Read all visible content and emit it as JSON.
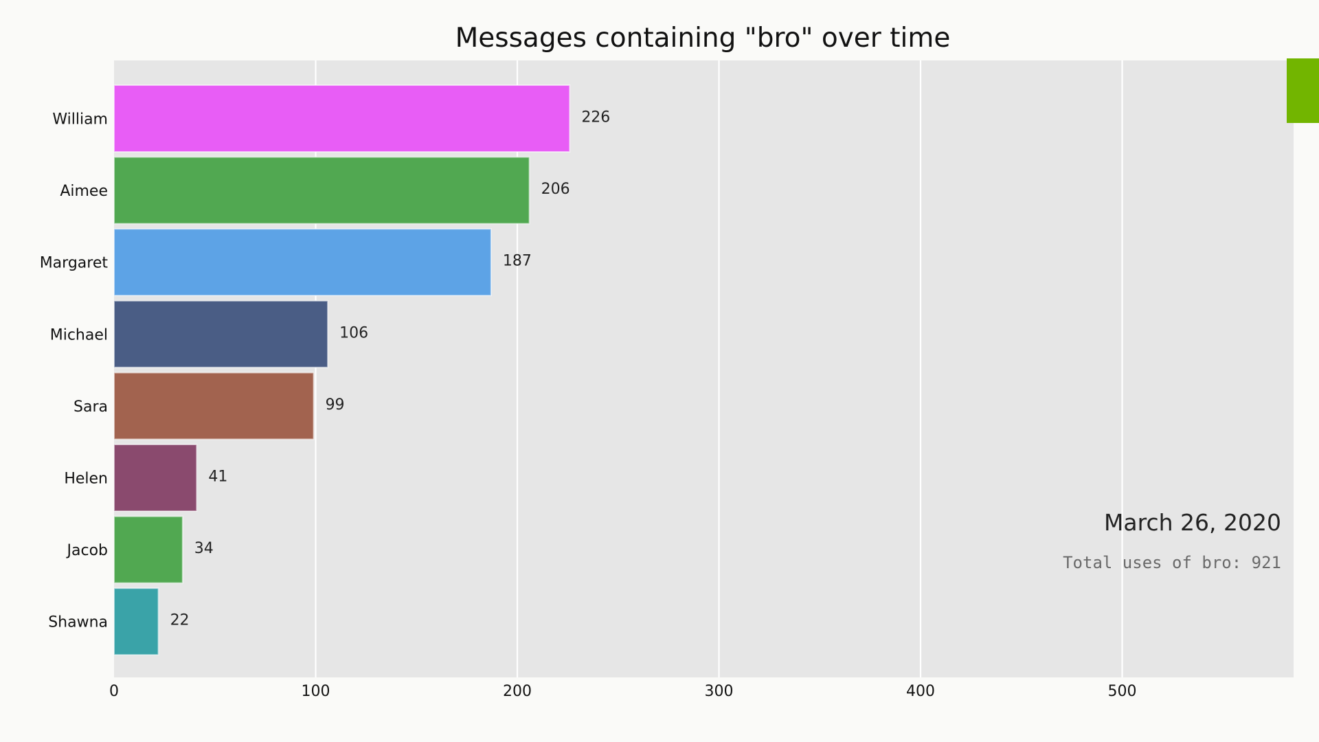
{
  "chart_data": {
    "type": "bar",
    "orientation": "horizontal",
    "title": "Messages containing \"bro\" over time",
    "categories": [
      "William",
      "Aimee",
      "Margaret",
      "Michael",
      "Sara",
      "Helen",
      "Jacob",
      "Shawna"
    ],
    "values": [
      226,
      206,
      187,
      106,
      99,
      41,
      34,
      22
    ],
    "colors": [
      "#e85df6",
      "#51a851",
      "#5da3e6",
      "#4a5d85",
      "#a2634f",
      "#8a4a6e",
      "#51a851",
      "#3aa3a8"
    ],
    "xlabel": "",
    "ylabel": "",
    "xlim": [
      0,
      585
    ],
    "x_ticks": [
      0,
      100,
      200,
      300,
      400,
      500
    ],
    "grid": true,
    "date": "March 26, 2020",
    "total_text": "Total uses of bro: 921",
    "plot_background": "#e6e6e6",
    "grid_color": "#ffffff",
    "accent_marker_color": "#72b500"
  }
}
